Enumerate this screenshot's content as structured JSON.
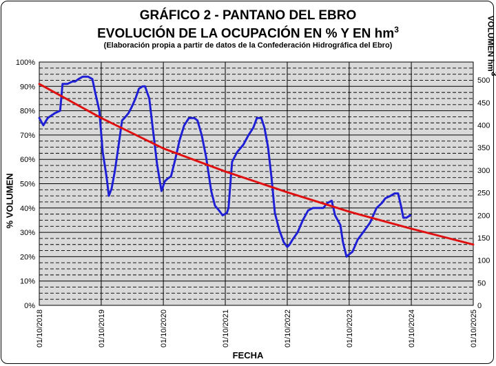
{
  "header": {
    "title_line1": "GRÁFICO 2 - PANTANO DEL EBRO",
    "title_line2": "EVOLUCIÓN DE LA OCUPACIÓN EN % Y EN hm",
    "title_line2_sup": "3",
    "subtitle": "(Elaboración propia a partir de datos de la Confederación Hidrográfica del Ebro)"
  },
  "colors": {
    "occupancy_line": "#1f1fd6",
    "trend_line": "#e01010",
    "plot_bg": "#d9d9d9",
    "gridline": "#000000"
  },
  "chart_data": {
    "type": "line",
    "xlabel": "FECHA",
    "ylabel": "% VOLUMEN",
    "y2label": "VOLUMEN hm",
    "y2label_sup": "3",
    "xlim": [
      "2018-10-01",
      "2025-10-01"
    ],
    "ylim": [
      0,
      100
    ],
    "y2lim": [
      0,
      540
    ],
    "x_tick_labels": [
      "01/10/2018",
      "01/10/2019",
      "01/10/2020",
      "01/10/2021",
      "01/10/2022",
      "01/10/2023",
      "01/10/2024",
      "01/10/2025"
    ],
    "y_tick_labels": [
      "0%",
      "10%",
      "20%",
      "30%",
      "40%",
      "50%",
      "60%",
      "70%",
      "80%",
      "90%",
      "100%"
    ],
    "y2_tick_labels": [
      "0",
      "50",
      "100",
      "150",
      "200",
      "250",
      "300",
      "350",
      "400",
      "450",
      "500"
    ],
    "y2_ticks": [
      0,
      50,
      100,
      150,
      200,
      250,
      300,
      350,
      400,
      450,
      500
    ],
    "grid": true,
    "series": [
      {
        "type": "occupancy",
        "x": [
          "2018-10-01",
          "2018-10-25",
          "2018-11-20",
          "2019-01-01",
          "2019-02-01",
          "2019-02-15",
          "2019-03-15",
          "2019-04-15",
          "2019-05-01",
          "2019-05-20",
          "2019-06-15",
          "2019-07-15",
          "2019-08-10",
          "2019-08-25",
          "2019-09-20",
          "2019-10-10",
          "2019-11-01",
          "2019-11-15",
          "2019-12-01",
          "2019-12-20",
          "2020-01-10",
          "2020-02-01",
          "2020-02-15",
          "2020-03-10",
          "2020-03-25",
          "2020-04-20",
          "2020-05-10",
          "2020-06-01",
          "2020-06-15",
          "2020-07-10",
          "2020-08-01",
          "2020-08-25",
          "2020-09-20",
          "2020-10-10",
          "2020-10-25",
          "2020-11-15",
          "2020-12-10",
          "2021-01-05",
          "2021-02-01",
          "2021-03-01",
          "2021-04-01",
          "2021-04-20",
          "2021-05-15",
          "2021-06-10",
          "2021-07-10",
          "2021-08-01",
          "2021-08-25",
          "2021-09-15",
          "2021-10-10",
          "2021-10-20",
          "2021-11-10",
          "2021-12-10",
          "2022-01-15",
          "2022-02-15",
          "2022-03-15",
          "2022-04-05",
          "2022-05-01",
          "2022-05-20",
          "2022-06-10",
          "2022-07-01",
          "2022-07-20",
          "2022-08-15",
          "2022-09-10",
          "2022-10-01",
          "2022-10-15",
          "2022-11-01",
          "2022-12-01",
          "2023-01-01",
          "2023-02-01",
          "2023-03-01",
          "2023-04-05",
          "2023-05-01",
          "2023-05-25",
          "2023-06-20",
          "2023-07-10",
          "2023-08-10",
          "2023-08-25",
          "2023-09-15",
          "2023-10-01",
          "2023-10-20",
          "2023-11-20",
          "2024-01-01",
          "2024-02-01",
          "2024-02-20",
          "2024-03-10",
          "2024-04-10",
          "2024-05-01",
          "2024-06-01",
          "2024-06-25",
          "2024-07-15",
          "2024-08-01",
          "2024-08-15",
          "2024-09-01",
          "2024-09-25"
        ],
        "values": [
          77,
          74,
          77,
          79,
          80,
          91,
          91,
          92,
          92,
          93,
          94,
          94,
          93,
          88,
          80,
          63,
          53,
          45,
          48,
          55,
          65,
          76,
          77,
          79,
          81,
          85,
          89,
          90,
          90,
          85,
          72,
          58,
          47,
          51,
          52,
          53,
          60,
          68,
          74,
          77,
          77,
          76,
          70,
          61,
          47,
          41,
          39,
          37,
          38,
          40,
          59,
          63,
          66,
          70,
          73,
          77,
          77,
          73,
          65,
          52,
          38,
          31,
          26,
          24,
          25,
          27,
          30,
          35,
          39,
          40,
          40,
          40,
          42,
          43,
          37,
          33,
          26,
          20,
          21,
          22,
          27,
          31,
          34,
          37,
          40,
          42,
          44,
          45,
          46,
          46,
          41,
          36,
          36,
          37
        ]
      },
      {
        "type": "trend",
        "x": [
          "2018-10-01",
          "2019-10-01",
          "2020-10-01",
          "2021-10-01",
          "2022-10-01",
          "2023-10-01",
          "2024-10-01",
          "2025-10-01"
        ],
        "values": [
          91,
          77,
          64.5,
          55,
          46.5,
          38.5,
          31.5,
          25
        ]
      }
    ]
  }
}
